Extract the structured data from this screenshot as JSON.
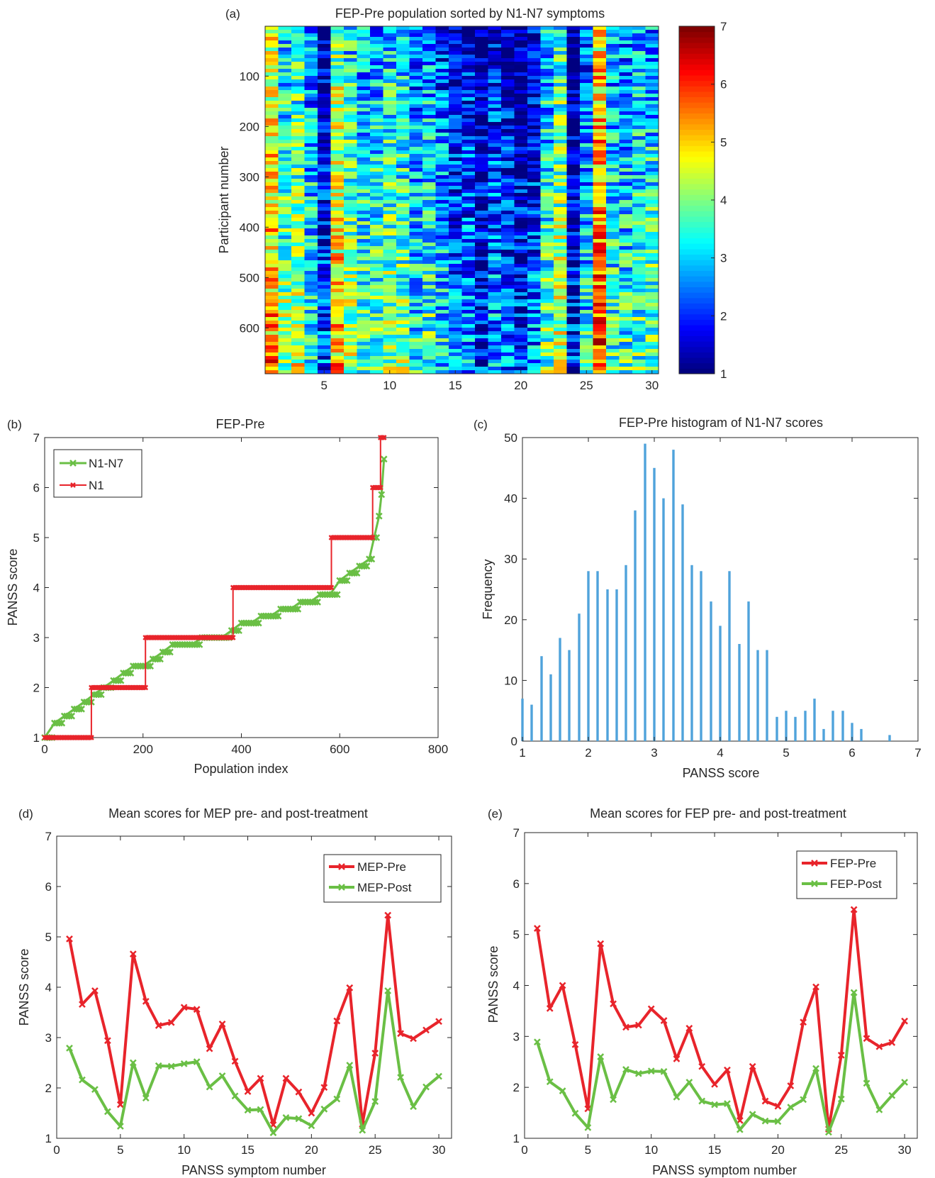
{
  "panels": {
    "a": {
      "label": "(a)"
    },
    "b": {
      "label": "(b)"
    },
    "c": {
      "label": "(c)"
    },
    "d": {
      "label": "(d)"
    },
    "e": {
      "label": "(e)"
    }
  },
  "colors": {
    "red": "#e8242b",
    "green": "#6abf45",
    "histogram_bar": "#4fa3db",
    "axis": "#262626"
  },
  "chart_data": [
    {
      "id": "a",
      "type": "heatmap",
      "title": "FEP-Pre population sorted by N1-N7 symptoms",
      "xlabel": "",
      "ylabel": "Participant number",
      "xlim": [
        0.5,
        30.5
      ],
      "ylim": [
        1,
        691
      ],
      "x_ticks": [
        5,
        10,
        15,
        20,
        25,
        30
      ],
      "y_ticks": [
        100,
        200,
        300,
        400,
        500,
        600
      ],
      "n_rows": 690,
      "n_cols": 30,
      "colorbar": {
        "range": [
          1,
          7
        ],
        "ticks": [
          1,
          2,
          3,
          4,
          5,
          6,
          7
        ],
        "colormap": "jet"
      },
      "column_means": [
        4.9,
        3.6,
        3.9,
        3.0,
        1.7,
        4.6,
        3.7,
        3.3,
        3.3,
        3.6,
        3.5,
        2.8,
        3.2,
        2.6,
        2.0,
        2.2,
        1.4,
        2.2,
        1.9,
        1.5,
        2.0,
        3.3,
        4.0,
        1.3,
        2.7,
        5.4,
        3.1,
        3.0,
        3.2,
        3.3
      ]
    },
    {
      "id": "b",
      "type": "line",
      "title": "FEP-Pre",
      "xlabel": "Population index",
      "ylabel": "PANSS score",
      "xlim": [
        0,
        800
      ],
      "ylim": [
        1,
        7
      ],
      "x_ticks": [
        0,
        200,
        400,
        600,
        800
      ],
      "y_ticks": [
        1,
        2,
        3,
        4,
        5,
        6,
        7
      ],
      "legend": "top-left",
      "series": [
        {
          "name": "N1-N7",
          "color": "#6abf45",
          "marker": "x",
          "x": [
            0,
            20,
            40,
            60,
            80,
            100,
            120,
            140,
            160,
            180,
            200,
            220,
            240,
            260,
            280,
            300,
            320,
            340,
            360,
            380,
            400,
            420,
            440,
            460,
            480,
            500,
            520,
            540,
            560,
            580,
            600,
            620,
            640,
            660,
            670,
            680,
            685,
            690
          ],
          "y": [
            1.0,
            1.29,
            1.43,
            1.57,
            1.71,
            1.86,
            2.0,
            2.14,
            2.29,
            2.43,
            2.43,
            2.57,
            2.71,
            2.86,
            2.86,
            2.86,
            3.0,
            3.0,
            3.0,
            3.14,
            3.29,
            3.29,
            3.43,
            3.43,
            3.57,
            3.57,
            3.71,
            3.71,
            3.86,
            3.86,
            4.14,
            4.29,
            4.43,
            4.57,
            5.0,
            5.43,
            5.86,
            6.57
          ]
        },
        {
          "name": "N1",
          "color": "#e8242b",
          "marker": "x",
          "x": [
            0,
            95,
            95,
            205,
            205,
            383,
            383,
            583,
            583,
            667,
            667,
            683,
            683,
            690
          ],
          "y": [
            1,
            1,
            2,
            2,
            3,
            3,
            4,
            4,
            5,
            5,
            6,
            6,
            7,
            7
          ]
        }
      ]
    },
    {
      "id": "c",
      "type": "bar",
      "title": "FEP-Pre histogram of N1-N7 scores",
      "xlabel": "PANSS score",
      "ylabel": "Frequency",
      "xlim": [
        1,
        7
      ],
      "ylim": [
        0,
        50
      ],
      "x_ticks": [
        1,
        2,
        3,
        4,
        5,
        6,
        7
      ],
      "y_ticks": [
        0,
        10,
        20,
        30,
        40,
        50
      ],
      "x": [
        1.0,
        1.14,
        1.29,
        1.43,
        1.57,
        1.71,
        1.86,
        2.0,
        2.14,
        2.29,
        2.43,
        2.57,
        2.71,
        2.86,
        3.0,
        3.14,
        3.29,
        3.43,
        3.57,
        3.71,
        3.86,
        4.0,
        4.14,
        4.29,
        4.43,
        4.57,
        4.71,
        4.86,
        5.0,
        5.14,
        5.29,
        5.43,
        5.57,
        5.71,
        5.86,
        6.0,
        6.14,
        6.29,
        6.43,
        6.57
      ],
      "values": [
        7,
        6,
        14,
        11,
        17,
        15,
        21,
        28,
        28,
        25,
        25,
        29,
        38,
        49,
        45,
        40,
        48,
        39,
        29,
        28,
        23,
        19,
        28,
        16,
        23,
        15,
        15,
        4,
        5,
        4,
        5,
        7,
        2,
        5,
        5,
        3,
        2,
        0,
        0,
        1
      ]
    },
    {
      "id": "d",
      "type": "line",
      "title": "Mean scores for MEP pre- and post-treatment",
      "xlabel": "PANSS symptom number",
      "ylabel": "PANSS score",
      "xlim": [
        0,
        31
      ],
      "ylim": [
        1,
        7
      ],
      "x_ticks": [
        0,
        5,
        10,
        15,
        20,
        25,
        30
      ],
      "y_ticks": [
        1,
        2,
        3,
        4,
        5,
        6,
        7
      ],
      "legend": "top-right",
      "x": [
        1,
        2,
        3,
        4,
        5,
        6,
        7,
        8,
        9,
        10,
        11,
        12,
        13,
        14,
        15,
        16,
        17,
        18,
        19,
        20,
        21,
        22,
        23,
        24,
        25,
        26,
        27,
        28,
        29,
        30
      ],
      "series": [
        {
          "name": "MEP-Pre",
          "color": "#e8242b",
          "values": [
            4.96,
            3.66,
            3.93,
            2.94,
            1.67,
            4.66,
            3.72,
            3.24,
            3.3,
            3.6,
            3.56,
            2.78,
            3.27,
            2.53,
            1.93,
            2.19,
            1.27,
            2.19,
            1.92,
            1.5,
            2.01,
            3.33,
            3.99,
            1.28,
            2.69,
            5.43,
            3.08,
            2.98,
            3.15,
            3.32
          ]
        },
        {
          "name": "MEP-Post",
          "color": "#6abf45",
          "values": [
            2.79,
            2.16,
            1.97,
            1.53,
            1.24,
            2.5,
            1.8,
            2.44,
            2.43,
            2.48,
            2.52,
            2.02,
            2.24,
            1.84,
            1.56,
            1.57,
            1.11,
            1.41,
            1.39,
            1.25,
            1.58,
            1.78,
            2.45,
            1.16,
            1.73,
            3.93,
            2.21,
            1.63,
            2.02,
            2.23
          ]
        }
      ]
    },
    {
      "id": "e",
      "type": "line",
      "title": "Mean scores for FEP pre- and post-treatment",
      "xlabel": "PANSS symptom number",
      "ylabel": "PANSS score",
      "xlim": [
        0,
        31
      ],
      "ylim": [
        1,
        7
      ],
      "x_ticks": [
        0,
        5,
        10,
        15,
        20,
        25,
        30
      ],
      "y_ticks": [
        1,
        2,
        3,
        4,
        5,
        6,
        7
      ],
      "legend": "top-right",
      "x": [
        1,
        2,
        3,
        4,
        5,
        6,
        7,
        8,
        9,
        10,
        11,
        12,
        13,
        14,
        15,
        16,
        17,
        18,
        19,
        20,
        21,
        22,
        23,
        24,
        25,
        26,
        27,
        28,
        29,
        30
      ],
      "series": [
        {
          "name": "FEP-Pre",
          "color": "#e8242b",
          "values": [
            5.12,
            3.55,
            4.0,
            2.84,
            1.58,
            4.82,
            3.64,
            3.18,
            3.22,
            3.54,
            3.31,
            2.56,
            3.16,
            2.41,
            2.06,
            2.34,
            1.35,
            2.41,
            1.73,
            1.63,
            2.03,
            3.28,
            3.97,
            1.18,
            2.63,
            5.49,
            2.96,
            2.8,
            2.88,
            3.3
          ]
        },
        {
          "name": "FEP-Post",
          "color": "#6abf45",
          "values": [
            2.89,
            2.11,
            1.93,
            1.49,
            1.21,
            2.6,
            1.76,
            2.35,
            2.27,
            2.32,
            2.31,
            1.81,
            2.1,
            1.73,
            1.66,
            1.68,
            1.17,
            1.47,
            1.34,
            1.33,
            1.61,
            1.76,
            2.37,
            1.12,
            1.77,
            3.86,
            2.08,
            1.56,
            1.84,
            2.1
          ]
        }
      ]
    }
  ]
}
